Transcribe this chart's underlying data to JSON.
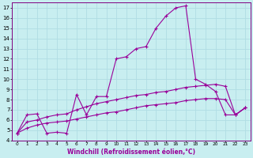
{
  "xlabel": "Windchill (Refroidissement éolien,°C)",
  "background_color": "#c8eef0",
  "grid_color": "#b0dde4",
  "line_color": "#990099",
  "spine_color": "#800080",
  "xlim": [
    -0.5,
    23.5
  ],
  "ylim": [
    4.0,
    17.5
  ],
  "xticks": [
    0,
    1,
    2,
    3,
    4,
    5,
    6,
    7,
    8,
    9,
    10,
    11,
    12,
    13,
    14,
    15,
    16,
    17,
    18,
    19,
    20,
    21,
    22,
    23
  ],
  "yticks": [
    4,
    5,
    6,
    7,
    8,
    9,
    10,
    11,
    12,
    13,
    14,
    15,
    16,
    17
  ],
  "line1_x": [
    0,
    1,
    2,
    3,
    4,
    5,
    6,
    7,
    8,
    9,
    10,
    11,
    12,
    13,
    14,
    15,
    16,
    17,
    18,
    19,
    20,
    21,
    22,
    23
  ],
  "line1_y": [
    4.7,
    6.5,
    6.6,
    4.7,
    4.8,
    4.7,
    8.5,
    6.5,
    8.3,
    8.3,
    12.0,
    12.2,
    13.0,
    13.2,
    15.0,
    16.2,
    17.0,
    17.2,
    10.0,
    9.5,
    8.8,
    6.5,
    6.5,
    7.2
  ],
  "line2_x": [
    0,
    1,
    2,
    3,
    4,
    5,
    6,
    7,
    8,
    9,
    10,
    11,
    12,
    13,
    14,
    15,
    16,
    17,
    18,
    19,
    20,
    21,
    22,
    23
  ],
  "line2_y": [
    4.7,
    5.8,
    6.0,
    6.3,
    6.5,
    6.6,
    7.0,
    7.3,
    7.6,
    7.8,
    8.0,
    8.2,
    8.4,
    8.5,
    8.7,
    8.8,
    9.0,
    9.2,
    9.3,
    9.4,
    9.5,
    9.3,
    6.5,
    7.2
  ],
  "line3_x": [
    0,
    1,
    2,
    3,
    4,
    5,
    6,
    7,
    8,
    9,
    10,
    11,
    12,
    13,
    14,
    15,
    16,
    17,
    18,
    19,
    20,
    21,
    22,
    23
  ],
  "line3_y": [
    4.7,
    5.2,
    5.5,
    5.7,
    5.8,
    5.9,
    6.1,
    6.3,
    6.5,
    6.7,
    6.8,
    7.0,
    7.2,
    7.4,
    7.5,
    7.6,
    7.7,
    7.9,
    8.0,
    8.1,
    8.1,
    8.0,
    6.5,
    7.2
  ]
}
